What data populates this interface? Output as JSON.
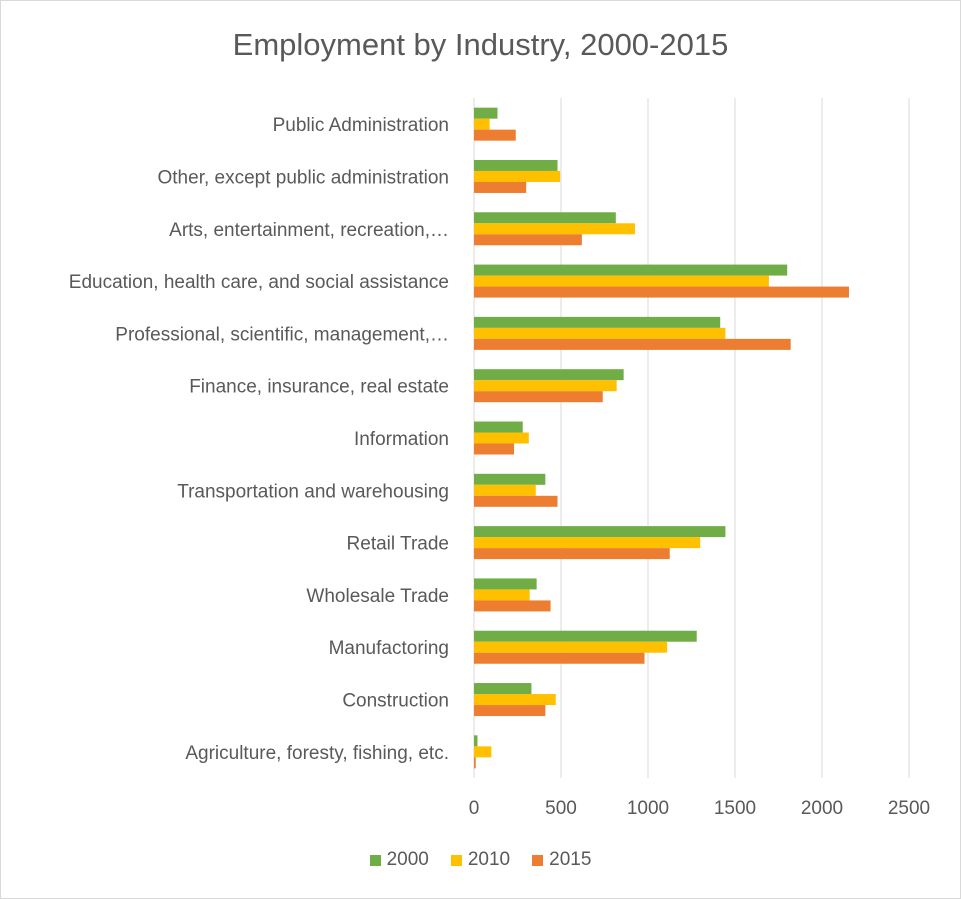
{
  "chart_data": {
    "type": "bar",
    "orientation": "horizontal",
    "title": "Employment by Industry, 2000-2015",
    "categories": [
      "Agriculture, foresty, fishing, etc.",
      "Construction",
      "Manufactoring",
      "Wholesale Trade",
      "Retail Trade",
      "Transportation and warehousing",
      "Information",
      "Finance, insurance, real estate",
      "Professional, scientific, management,…",
      "Education, health care, and social assistance",
      "Arts, entertainment, recreation,…",
      "Other, except public administration",
      "Public Administration"
    ],
    "series": [
      {
        "name": "2000",
        "color": "#70ad47",
        "values": [
          20,
          330,
          1280,
          360,
          1445,
          410,
          280,
          860,
          1415,
          1800,
          815,
          480,
          135
        ]
      },
      {
        "name": "2010",
        "color": "#ffc000",
        "values": [
          100,
          470,
          1110,
          320,
          1300,
          355,
          315,
          820,
          1445,
          1695,
          925,
          495,
          90
        ]
      },
      {
        "name": "2015",
        "color": "#ed7d31",
        "values": [
          10,
          410,
          980,
          440,
          1125,
          480,
          230,
          740,
          1820,
          2155,
          620,
          300,
          240
        ]
      }
    ],
    "xlim": [
      0,
      2500
    ],
    "xticks": [
      0,
      500,
      1000,
      1500,
      2000,
      2500
    ],
    "grid": true,
    "legend_position": "bottom"
  }
}
